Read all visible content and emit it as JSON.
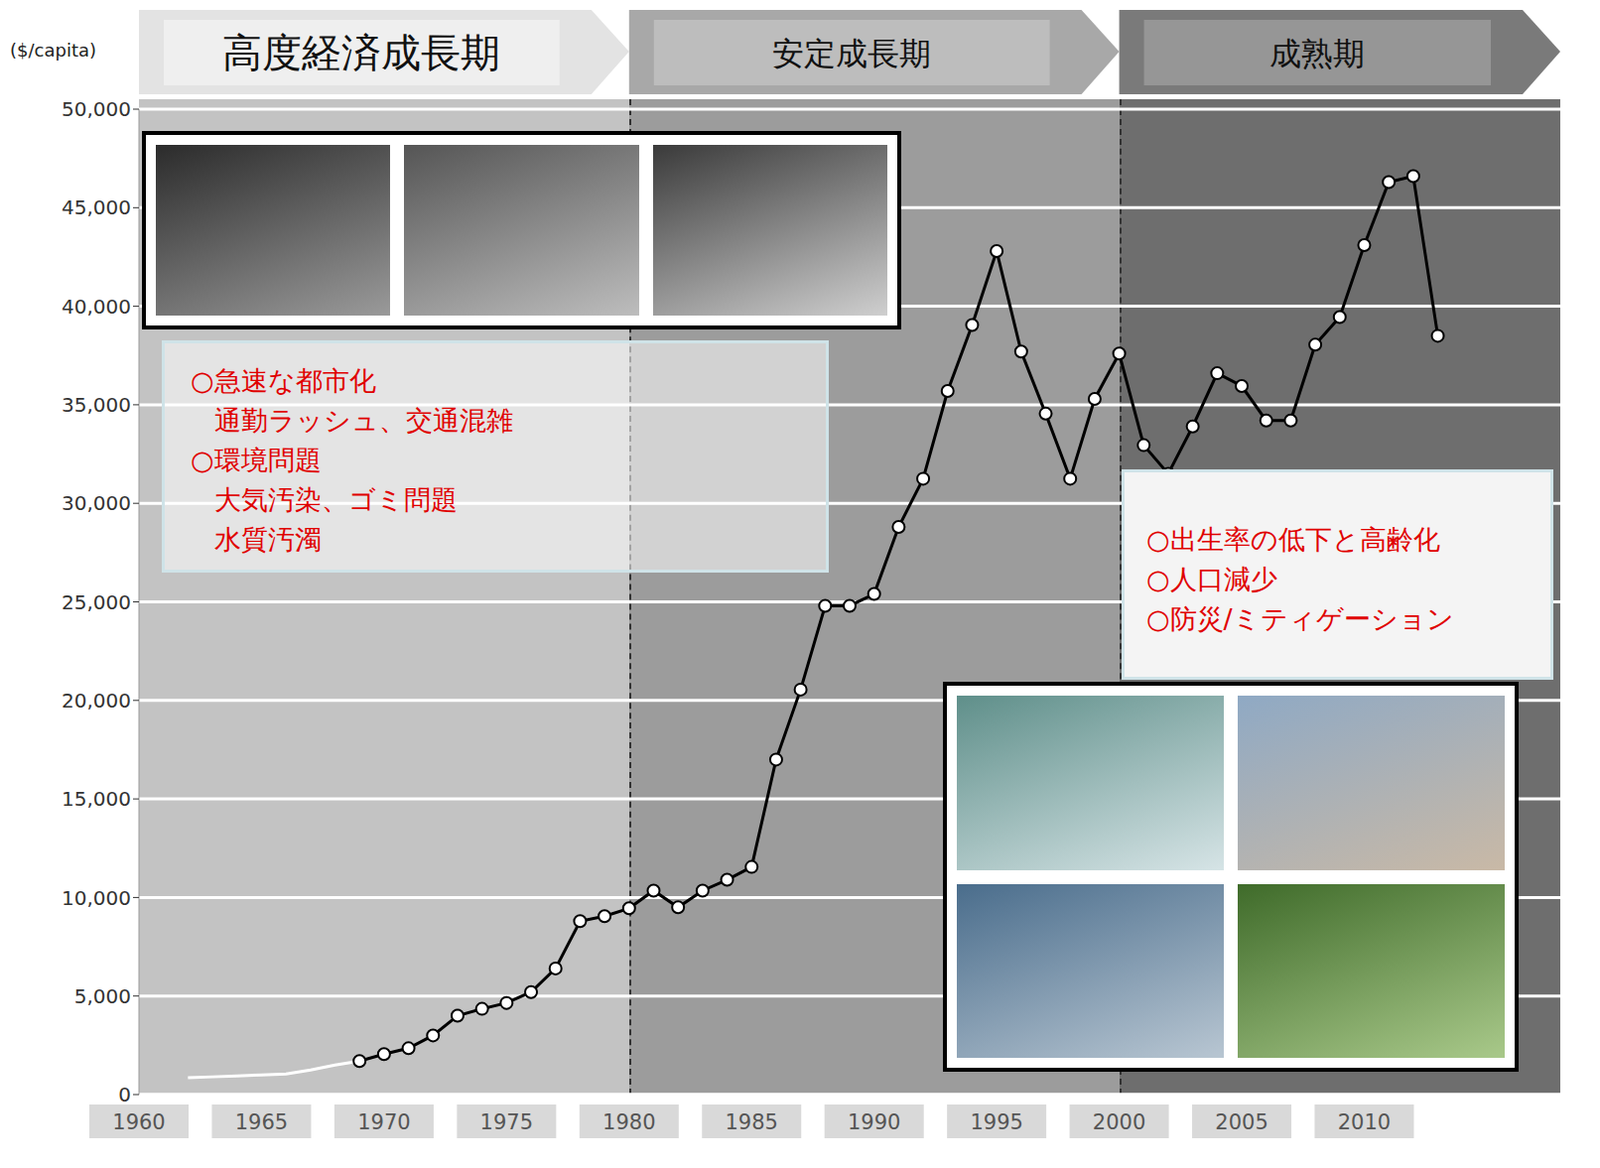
{
  "chart_data": {
    "type": "line",
    "y_label": "($/capita)",
    "xlim": [
      1960,
      2018
    ],
    "xticks": [
      1960,
      1965,
      1970,
      1975,
      1980,
      1985,
      1990,
      1995,
      2000,
      2005,
      2010
    ],
    "ylim": [
      0,
      50000
    ],
    "yticks": [
      0,
      {
        "value": 5000,
        "label": "5,000"
      },
      {
        "value": 10000,
        "label": "10,000"
      },
      {
        "value": 15000,
        "label": "15,000"
      },
      {
        "value": 20000,
        "label": "20,000"
      },
      {
        "value": 25000,
        "label": "25,000"
      },
      {
        "value": 30000,
        "label": "30,000"
      },
      {
        "value": 35000,
        "label": "35,000"
      },
      {
        "value": 40000,
        "label": "40,000"
      },
      {
        "value": 45000,
        "label": "45,000"
      },
      {
        "value": 50000,
        "label": "50,000"
      }
    ],
    "grid": true,
    "series": [
      {
        "color": "#ffffff",
        "marker": "none",
        "x": [
          1962,
          1963,
          1964,
          1965,
          1966,
          1967,
          1968,
          1969
        ],
        "values": [
          850,
          900,
          950,
          1000,
          1050,
          1250,
          1500,
          1700
        ]
      },
      {
        "color": "#000000",
        "marker": "circle",
        "x": [
          1969,
          1970,
          1971,
          1972,
          1973,
          1974,
          1975,
          1976,
          1977,
          1978,
          1979,
          1980,
          1981,
          1982,
          1983,
          1984,
          1985,
          1986,
          1987,
          1988,
          1989,
          1990,
          1991,
          1992,
          1993,
          1994,
          1995,
          1996,
          1997,
          1998,
          1999,
          2000,
          2001,
          2002,
          2003,
          2004,
          2005,
          2006,
          2007,
          2008,
          2009,
          2010,
          2011,
          2012,
          2013
        ],
        "values": [
          1700,
          2050,
          2350,
          3000,
          4000,
          4350,
          4650,
          5200,
          6400,
          8800,
          9050,
          9450,
          10350,
          9500,
          10350,
          10900,
          11550,
          17000,
          20550,
          24800,
          24800,
          25400,
          28800,
          31250,
          35700,
          39050,
          42800,
          37700,
          34550,
          31250,
          35300,
          37600,
          32950,
          31500,
          33900,
          36600,
          35950,
          34200,
          34200,
          38050,
          39450,
          43100,
          46300,
          46600,
          38500
        ]
      }
    ],
    "phases": [
      {
        "label": "高度経済成長期",
        "start": 1960,
        "end": 1980,
        "color": "#c3c3c3"
      },
      {
        "label": "安定成長期",
        "start": 1980,
        "end": 2000,
        "color": "#9c9c9c"
      },
      {
        "label": "成熟期",
        "start": 2000,
        "end": 2018,
        "color": "#6e6e6e"
      }
    ],
    "annotations": [
      {
        "items": [
          {
            "heading": "○急速な都市化",
            "details": [
              "通勤ラッシュ、交通混雑"
            ]
          },
          {
            "heading": "○環境問題",
            "details": [
              "大気汚染、ゴミ問題",
              "水質汚濁"
            ]
          }
        ]
      },
      {
        "items": [
          {
            "heading": "○出生率の低下と高齢化",
            "details": []
          },
          {
            "heading": "○人口減少",
            "details": []
          },
          {
            "heading": "○防災/ミティゲーション",
            "details": []
          }
        ]
      }
    ]
  }
}
